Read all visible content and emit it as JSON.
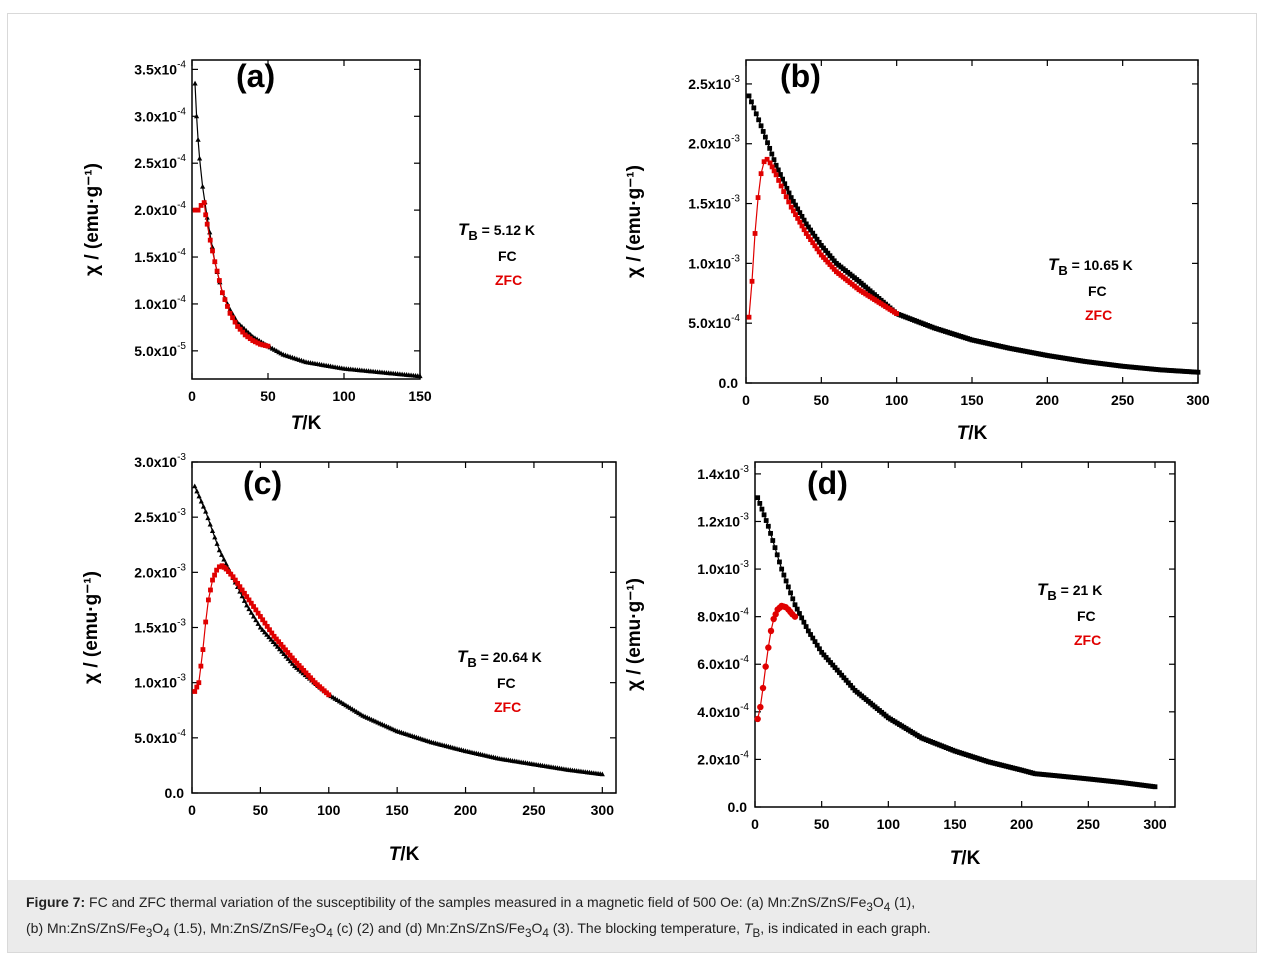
{
  "colors": {
    "fc": "#000000",
    "zfc": "#e00000",
    "caption_bg": "#ebebeb"
  },
  "caption": {
    "label": "Figure 7:",
    "line1_a": "FC and ZFC thermal variation of the susceptibility of the samples measured in a magnetic field of 500 Oe: (a) Mn:ZnS/ZnS/Fe",
    "line1_b": "O",
    "line1_c": " (1),",
    "line2_a": "(b) Mn:ZnS/ZnS/Fe",
    "line2_b": "O",
    "line2_c": " (1.5), Mn:ZnS/ZnS/Fe",
    "line2_d": "O",
    "line2_e": " (c) (2) and (d) Mn:ZnS/ZnS/Fe",
    "line2_f": "O",
    "line2_g": " (3). The blocking temperature, ",
    "line2_h": "T",
    "line2_i": "B",
    "line2_j": ", is indicated in each graph.",
    "sub3": "3",
    "sub4": "4"
  },
  "chart_data": [
    {
      "type": "scatter",
      "panel": "(a)",
      "xlabel_italic": "T",
      "xlabel_rest": "/K",
      "ylabel": "χ / (emu·g⁻¹)",
      "xlim": [
        0,
        150
      ],
      "ylim": [
        2e-05,
        0.00036
      ],
      "xticks": [
        0,
        50,
        100,
        150
      ],
      "xtick_labels": [
        "0",
        "50",
        "100",
        "150"
      ],
      "yticks": [
        5e-05,
        0.0001,
        0.00015,
        0.0002,
        0.00025,
        0.0003,
        0.00035
      ],
      "ytick_mant": [
        "5.0x10",
        "1.0x10",
        "1.5x10",
        "2.0x10",
        "2.5x10",
        "3.0x10",
        "3.5x10"
      ],
      "ytick_exp": [
        "-5",
        "-4",
        "-4",
        "-4",
        "-4",
        "-4",
        "-4"
      ],
      "annotation": {
        "tb_symbol": "T",
        "tb_sub": "B",
        "tb_value": " = 5.12 K"
      },
      "legend": [
        "FC",
        "ZFC"
      ],
      "series": [
        {
          "name": "FC",
          "marker": "triangle",
          "x": [
            2,
            3,
            4,
            5,
            7,
            10,
            15,
            20,
            25,
            30,
            40,
            50,
            60,
            75,
            100,
            125,
            150
          ],
          "y": [
            0.000335,
            0.0003,
            0.000275,
            0.000255,
            0.000225,
            0.000192,
            0.000145,
            0.000112,
            9.4e-05,
            8e-05,
            6.5e-05,
            5.5e-05,
            4.6e-05,
            3.8e-05,
            3.1e-05,
            2.7e-05,
            2.3e-05
          ]
        },
        {
          "name": "ZFC",
          "marker": "square",
          "x": [
            2,
            4,
            6,
            8,
            9,
            10,
            12,
            15,
            18,
            20,
            25,
            30,
            35,
            40,
            45,
            50
          ],
          "y": [
            0.0002,
            0.0002,
            0.000205,
            0.000208,
            0.000195,
            0.000185,
            0.000168,
            0.000145,
            0.000125,
            0.000112,
            9e-05,
            7.6e-05,
            6.7e-05,
            6.1e-05,
            5.7e-05,
            5.5e-05
          ]
        }
      ]
    },
    {
      "type": "scatter",
      "panel": "(b)",
      "xlabel_italic": "T",
      "xlabel_rest": "/K",
      "ylabel": "χ / (emu·g⁻¹)",
      "xlim": [
        0,
        300
      ],
      "ylim": [
        0,
        0.0027
      ],
      "xticks": [
        0,
        50,
        100,
        150,
        200,
        250,
        300
      ],
      "xtick_labels": [
        "0",
        "50",
        "100",
        "150",
        "200",
        "250",
        "300"
      ],
      "yticks": [
        0,
        0.0005,
        0.001,
        0.0015,
        0.002,
        0.0025
      ],
      "ytick_mant": [
        "0.0",
        "5.0x10",
        "1.0x10",
        "1.5x10",
        "2.0x10",
        "2.5x10"
      ],
      "ytick_exp": [
        "",
        "-4",
        "-3",
        "-3",
        "-3",
        "-3"
      ],
      "annotation": {
        "tb_symbol": "T",
        "tb_sub": "B",
        "tb_value": " = 10.65 K"
      },
      "legend": [
        "FC",
        "ZFC"
      ],
      "series": [
        {
          "name": "FC",
          "marker": "square",
          "x": [
            2,
            10,
            20,
            30,
            40,
            50,
            60,
            75,
            100,
            125,
            150,
            175,
            200,
            225,
            250,
            275,
            300
          ],
          "y": [
            0.0024,
            0.00215,
            0.00182,
            0.00155,
            0.00133,
            0.00115,
            0.001,
            0.00085,
            0.00058,
            0.00046,
            0.00036,
            0.00029,
            0.00023,
            0.00018,
            0.00014,
            0.00011,
            9e-05
          ]
        },
        {
          "name": "ZFC",
          "marker": "square",
          "x": [
            2,
            4,
            6,
            8,
            10,
            12,
            14,
            16,
            20,
            25,
            30,
            40,
            50,
            60,
            75,
            100
          ],
          "y": [
            0.00055,
            0.00085,
            0.00125,
            0.00155,
            0.00175,
            0.00185,
            0.00187,
            0.00184,
            0.00174,
            0.0016,
            0.00147,
            0.00125,
            0.00107,
            0.00093,
            0.00078,
            0.00058
          ]
        }
      ]
    },
    {
      "type": "scatter",
      "panel": "(c)",
      "xlabel_italic": "T",
      "xlabel_rest": "/K",
      "ylabel": "χ / (emu·g⁻¹)",
      "xlim": [
        0,
        310
      ],
      "ylim": [
        0,
        0.003
      ],
      "xticks": [
        0,
        50,
        100,
        150,
        200,
        250,
        300
      ],
      "xtick_labels": [
        "0",
        "50",
        "100",
        "150",
        "200",
        "250",
        "300"
      ],
      "yticks": [
        0,
        0.0005,
        0.001,
        0.0015,
        0.002,
        0.0025,
        0.003
      ],
      "ytick_mant": [
        "0.0",
        "5.0x10",
        "1.0x10",
        "1.5x10",
        "2.0x10",
        "2.5x10",
        "3.0x10"
      ],
      "ytick_exp": [
        "",
        "-4",
        "-3",
        "-3",
        "-3",
        "-3",
        "-3"
      ],
      "annotation": {
        "tb_symbol": "T",
        "tb_sub": "B",
        "tb_value": " = 20.64 K"
      },
      "legend": [
        "FC",
        "ZFC"
      ],
      "series": [
        {
          "name": "FC",
          "marker": "triangle",
          "x": [
            2,
            10,
            20,
            30,
            40,
            50,
            75,
            100,
            125,
            150,
            175,
            200,
            225,
            250,
            275,
            300
          ],
          "y": [
            0.00278,
            0.00255,
            0.0022,
            0.00195,
            0.0017,
            0.0015,
            0.00115,
            0.00089,
            0.0007,
            0.00056,
            0.00046,
            0.00038,
            0.00031,
            0.00026,
            0.00021,
            0.00017
          ]
        },
        {
          "name": "ZFC",
          "marker": "square",
          "x": [
            2,
            5,
            8,
            10,
            12,
            15,
            18,
            20,
            22,
            25,
            30,
            40,
            50,
            60,
            75,
            90,
            100
          ],
          "y": [
            0.00092,
            0.001,
            0.0013,
            0.00155,
            0.00175,
            0.00193,
            0.00202,
            0.00205,
            0.00206,
            0.00203,
            0.00196,
            0.00178,
            0.0016,
            0.00142,
            0.0012,
            0.001,
            0.00089
          ]
        }
      ]
    },
    {
      "type": "scatter",
      "panel": "(d)",
      "xlabel_italic": "T",
      "xlabel_rest": "/K",
      "ylabel": "χ / (emu·g⁻¹)",
      "xlim": [
        0,
        315
      ],
      "ylim": [
        0,
        0.00145
      ],
      "xticks": [
        0,
        50,
        100,
        150,
        200,
        250,
        300
      ],
      "xtick_labels": [
        "0",
        "50",
        "100",
        "150",
        "200",
        "250",
        "300"
      ],
      "yticks": [
        0,
        0.0002,
        0.0004,
        0.0006,
        0.0008,
        0.001,
        0.0012,
        0.0014
      ],
      "ytick_mant": [
        "0.0",
        "2.0x10",
        "4.0x10",
        "6.0x10",
        "8.0x10",
        "1.0x10",
        "1.2x10",
        "1.4x10"
      ],
      "ytick_exp": [
        "",
        "-4",
        "-4",
        "-4",
        "-4",
        "-3",
        "-3",
        "-3"
      ],
      "annotation": {
        "tb_symbol": "T",
        "tb_sub": "B",
        "tb_value": " = 21 K"
      },
      "legend": [
        "FC",
        "ZFC"
      ],
      "series": [
        {
          "name": "FC",
          "marker": "square",
          "x": [
            2,
            10,
            20,
            30,
            40,
            50,
            75,
            100,
            125,
            150,
            175,
            200,
            210,
            225,
            250,
            275,
            300
          ],
          "y": [
            0.0013,
            0.00118,
            0.001,
            0.00085,
            0.00074,
            0.00065,
            0.00049,
            0.000375,
            0.00029,
            0.000235,
            0.00019,
            0.000155,
            0.00014,
            0.000132,
            0.000118,
            0.000103,
            8.5e-05
          ]
        },
        {
          "name": "ZFC",
          "marker": "circle",
          "x": [
            2,
            4,
            6,
            8,
            10,
            12,
            14,
            17,
            20,
            23,
            25,
            28,
            30
          ],
          "y": [
            0.00037,
            0.00042,
            0.0005,
            0.00059,
            0.00067,
            0.00074,
            0.00079,
            0.00083,
            0.000845,
            0.00084,
            0.00083,
            0.00081,
            0.0008
          ]
        }
      ]
    }
  ]
}
